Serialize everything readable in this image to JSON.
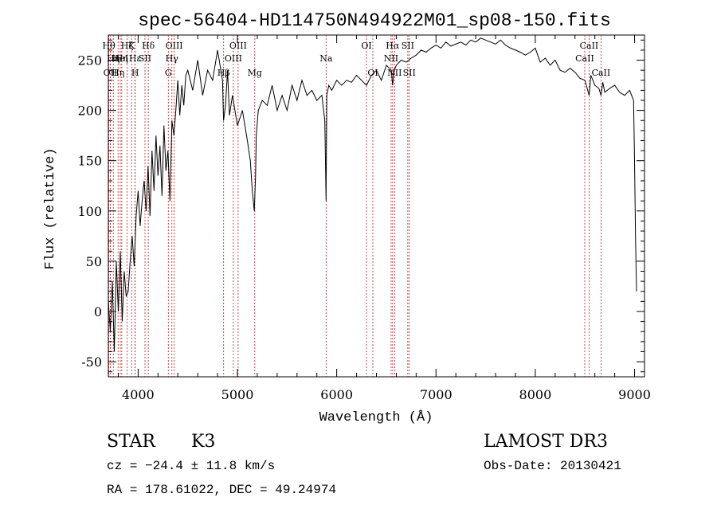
{
  "chart_data": {
    "type": "line",
    "title": "spec-56404-HD114750N494922M01_sp08-150.fits",
    "xlabel": "Wavelength (Å)",
    "ylabel": "Flux (relative)",
    "xlim": [
      3700,
      9100
    ],
    "ylim": [
      -65,
      275
    ],
    "xticks": [
      4000,
      5000,
      6000,
      7000,
      8000,
      9000
    ],
    "yticks": [
      -50,
      0,
      50,
      100,
      150,
      200,
      250
    ],
    "grid": false,
    "series": [
      {
        "name": "flux",
        "x": [
          3700,
          3720,
          3740,
          3760,
          3780,
          3800,
          3820,
          3840,
          3860,
          3880,
          3900,
          3920,
          3940,
          3960,
          3980,
          4000,
          4020,
          4040,
          4060,
          4080,
          4100,
          4120,
          4140,
          4160,
          4180,
          4200,
          4220,
          4240,
          4260,
          4280,
          4300,
          4320,
          4340,
          4360,
          4380,
          4400,
          4420,
          4440,
          4460,
          4480,
          4500,
          4550,
          4600,
          4650,
          4700,
          4750,
          4800,
          4850,
          4860,
          4880,
          4900,
          4920,
          4950,
          5000,
          5050,
          5100,
          5130,
          5150,
          5170,
          5183,
          5190,
          5210,
          5250,
          5300,
          5350,
          5400,
          5450,
          5500,
          5550,
          5600,
          5650,
          5700,
          5750,
          5800,
          5850,
          5880,
          5893,
          5900,
          5920,
          5950,
          6000,
          6050,
          6100,
          6150,
          6200,
          6250,
          6300,
          6350,
          6400,
          6450,
          6500,
          6550,
          6563,
          6580,
          6600,
          6650,
          6700,
          6750,
          6800,
          6850,
          6900,
          6950,
          7000,
          7050,
          7100,
          7150,
          7200,
          7250,
          7300,
          7350,
          7400,
          7450,
          7500,
          7550,
          7600,
          7650,
          7700,
          7750,
          7800,
          7850,
          7900,
          7950,
          8000,
          8050,
          8100,
          8150,
          8200,
          8250,
          8300,
          8350,
          8400,
          8450,
          8500,
          8542,
          8560,
          8600,
          8640,
          8662,
          8680,
          8700,
          8750,
          8800,
          8850,
          8900,
          8950,
          8990,
          9000,
          9010,
          9020
        ],
        "y": [
          10,
          -20,
          30,
          -40,
          50,
          0,
          60,
          -10,
          40,
          15,
          20,
          50,
          75,
          45,
          95,
          120,
          85,
          110,
          130,
          100,
          145,
          95,
          160,
          120,
          175,
          135,
          165,
          115,
          185,
          140,
          160,
          110,
          190,
          175,
          200,
          230,
          195,
          225,
          205,
          235,
          240,
          220,
          250,
          215,
          240,
          230,
          260,
          230,
          190,
          205,
          240,
          195,
          215,
          185,
          200,
          170,
          150,
          120,
          100,
          135,
          175,
          200,
          210,
          205,
          225,
          200,
          215,
          200,
          225,
          210,
          230,
          215,
          220,
          210,
          215,
          190,
          110,
          215,
          225,
          220,
          230,
          225,
          230,
          228,
          235,
          230,
          225,
          235,
          240,
          230,
          245,
          240,
          225,
          240,
          245,
          250,
          248,
          252,
          255,
          260,
          258,
          262,
          265,
          262,
          268,
          264,
          266,
          268,
          265,
          270,
          268,
          272,
          270,
          268,
          266,
          270,
          265,
          262,
          260,
          258,
          255,
          258,
          262,
          248,
          252,
          245,
          250,
          240,
          238,
          242,
          238,
          232,
          230,
          215,
          235,
          225,
          222,
          215,
          228,
          218,
          222,
          225,
          218,
          215,
          220,
          210,
          150,
          70,
          20
        ]
      }
    ],
    "lines": [
      {
        "x": 3705,
        "label": "Hθ",
        "row": 0
      },
      {
        "x": 3720,
        "label": "OII",
        "row": 2
      },
      {
        "x": 3750,
        "label": "Hη",
        "row": 1
      },
      {
        "x": 3798,
        "label": "Hη",
        "row": 2
      },
      {
        "x": 3820,
        "label": "HeI",
        "row": 1
      },
      {
        "x": 3835,
        "label": "Hη",
        "row": 1
      },
      {
        "x": 3889,
        "label": "Hζ",
        "row": 0
      },
      {
        "x": 3934,
        "label": "K",
        "row": 0
      },
      {
        "x": 3969,
        "label": "Hε",
        "row": 1
      },
      {
        "x": 3970,
        "label": "H",
        "row": 2
      },
      {
        "x": 4069,
        "label": "SII",
        "row": 1
      },
      {
        "x": 4102,
        "label": "Hδ",
        "row": 0
      },
      {
        "x": 4304,
        "label": "G",
        "row": 2
      },
      {
        "x": 4340,
        "label": "Hγ",
        "row": 1
      },
      {
        "x": 4363,
        "label": "OIII",
        "row": 0
      },
      {
        "x": 4861,
        "label": "Hβ",
        "row": 2
      },
      {
        "x": 4959,
        "label": "OIII",
        "row": 1
      },
      {
        "x": 5007,
        "label": "OIII",
        "row": 0
      },
      {
        "x": 5175,
        "label": "Mg",
        "row": 2
      },
      {
        "x": 5893,
        "label": "Na",
        "row": 1
      },
      {
        "x": 6300,
        "label": "OI",
        "row": 0
      },
      {
        "x": 6364,
        "label": "OI",
        "row": 2
      },
      {
        "x": 6548,
        "label": "NII",
        "row": 1
      },
      {
        "x": 6563,
        "label": "Hα",
        "row": 0
      },
      {
        "x": 6583,
        "label": "NII",
        "row": 2
      },
      {
        "x": 6716,
        "label": "SII",
        "row": 0
      },
      {
        "x": 6731,
        "label": "SII",
        "row": 2
      },
      {
        "x": 8498,
        "label": "CaII",
        "row": 1
      },
      {
        "x": 8542,
        "label": "CaII",
        "row": 0
      },
      {
        "x": 8662,
        "label": "CaII",
        "row": 2
      }
    ]
  },
  "info": {
    "class_label": "STAR",
    "subclass": "K3",
    "survey": "LAMOST DR3",
    "cz": "cz = −24.4 ± 11.8 km/s",
    "obs_date": "Obs-Date: 20130421",
    "coords": "RA = 178.61022, DEC =  49.24974"
  },
  "colors": {
    "spectrum": "#000000",
    "lines": "#b22222",
    "axes": "#000000"
  }
}
